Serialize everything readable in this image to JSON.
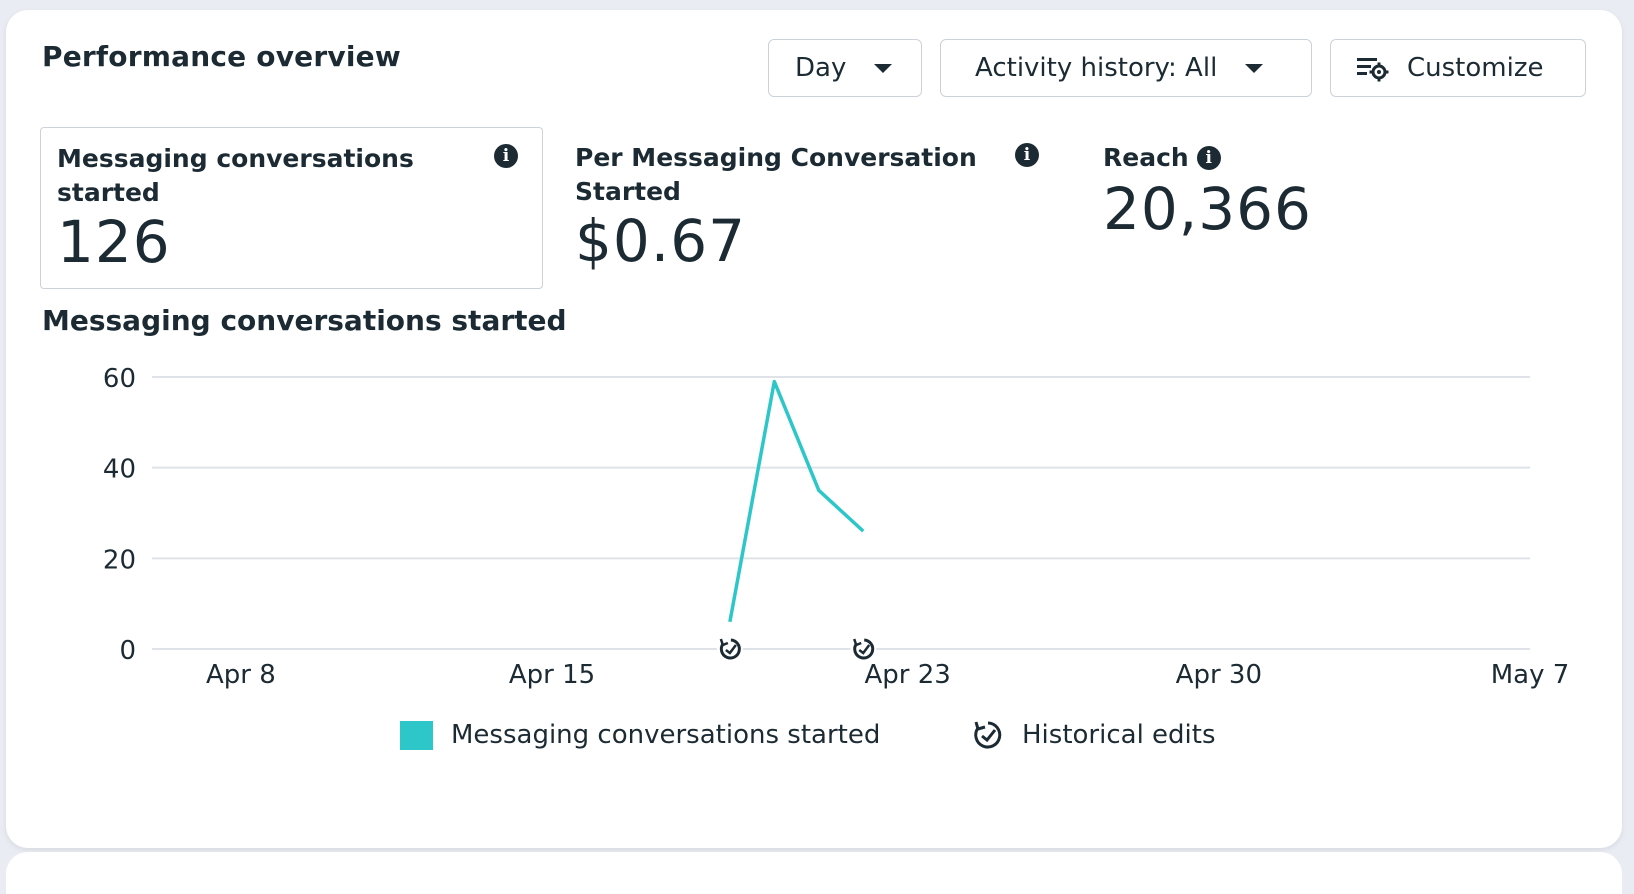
{
  "header": {
    "title": "Performance overview",
    "day_label": "Day",
    "activity_label": "Activity history: All",
    "customize_label": "Customize"
  },
  "metrics": [
    {
      "label_line1": "Messaging conversations",
      "label_line2": "started",
      "value": "126"
    },
    {
      "label_line1": "Per Messaging Conversation",
      "label_line2": "Started",
      "value": "$0.67"
    },
    {
      "label_line1": "Reach",
      "label_line2": "",
      "value": "20,366"
    }
  ],
  "chart_section": {
    "title": "Messaging conversations started"
  },
  "legend": {
    "series_label": "Messaging conversations started",
    "edits_label": "Historical edits"
  },
  "colors": {
    "series": "#2ec7c9",
    "grid": "#dfe3e8",
    "text": "#1c2b33"
  },
  "icons": {
    "info": "info-icon",
    "caret": "caret-down-icon",
    "customize": "customize-settings-icon",
    "historical_edit": "historical-edit-icon"
  },
  "chart_data": {
    "type": "line",
    "title": "Messaging conversations started",
    "x_ticks": [
      "Apr 8",
      "Apr 15",
      "Apr 23",
      "Apr 30",
      "May 7"
    ],
    "x_tick_days": [
      7,
      14,
      22,
      29,
      36
    ],
    "x_domain_days": [
      5,
      36
    ],
    "y_ticks": [
      0,
      20,
      40,
      60
    ],
    "ylim": [
      0,
      60
    ],
    "series": [
      {
        "name": "Messaging conversations started",
        "x_days": [
          18,
          19,
          20,
          21
        ],
        "values": [
          6,
          59,
          35,
          26
        ]
      }
    ],
    "historical_edit_days": [
      18,
      21
    ],
    "grid": true,
    "legend_position": "bottom"
  }
}
